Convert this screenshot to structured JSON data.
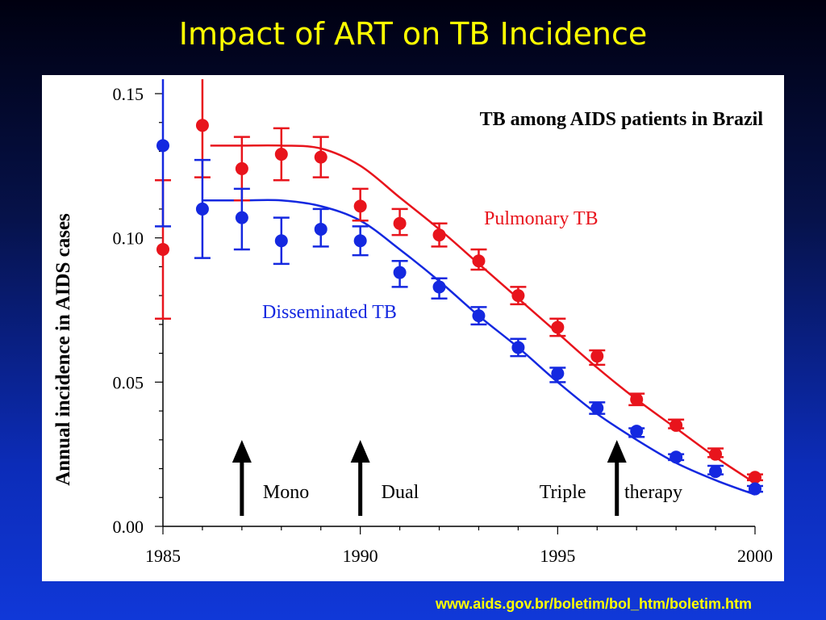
{
  "slide": {
    "title": "Impact of ART on TB Incidence",
    "source": "www.aids.gov.br/boletim/bol_htm/boletim.htm"
  },
  "colors": {
    "title": "#ffff00",
    "pulmonary": "#e8141c",
    "disseminated": "#1428e0",
    "arrows": "#000000"
  },
  "chart_data": {
    "type": "scatter",
    "title": "TB among AIDS patients in Brazil",
    "xlabel": "",
    "ylabel": "Annual incidence in AIDS cases",
    "xlim": [
      1985,
      2000
    ],
    "ylim": [
      0.0,
      0.15
    ],
    "x_ticks": [
      "1985",
      "1990",
      "1995",
      "2000"
    ],
    "y_ticks": [
      "0.00",
      "0.05",
      "0.10",
      "0.15"
    ],
    "series": [
      {
        "name": "Pulmonary TB",
        "color": "#e8141c",
        "points": [
          {
            "x": 1985,
            "y": 0.096,
            "lo": 0.072,
            "hi": 0.12
          },
          {
            "x": 1986,
            "y": 0.139,
            "lo": 0.121,
            "hi": 0.155
          },
          {
            "x": 1987,
            "y": 0.124,
            "lo": 0.113,
            "hi": 0.135
          },
          {
            "x": 1988,
            "y": 0.129,
            "lo": 0.12,
            "hi": 0.138
          },
          {
            "x": 1989,
            "y": 0.128,
            "lo": 0.121,
            "hi": 0.135
          },
          {
            "x": 1990,
            "y": 0.111,
            "lo": 0.106,
            "hi": 0.117
          },
          {
            "x": 1991,
            "y": 0.105,
            "lo": 0.101,
            "hi": 0.11
          },
          {
            "x": 1992,
            "y": 0.101,
            "lo": 0.097,
            "hi": 0.105
          },
          {
            "x": 1993,
            "y": 0.092,
            "lo": 0.089,
            "hi": 0.096
          },
          {
            "x": 1994,
            "y": 0.08,
            "lo": 0.077,
            "hi": 0.083
          },
          {
            "x": 1995,
            "y": 0.069,
            "lo": 0.066,
            "hi": 0.072
          },
          {
            "x": 1996,
            "y": 0.059,
            "lo": 0.056,
            "hi": 0.061
          },
          {
            "x": 1997,
            "y": 0.044,
            "lo": 0.042,
            "hi": 0.046
          },
          {
            "x": 1998,
            "y": 0.035,
            "lo": 0.034,
            "hi": 0.037
          },
          {
            "x": 1999,
            "y": 0.025,
            "lo": 0.024,
            "hi": 0.027
          },
          {
            "x": 2000,
            "y": 0.017,
            "lo": 0.016,
            "hi": 0.018
          }
        ],
        "fit": [
          [
            1986.2,
            0.132
          ],
          [
            1987,
            0.132
          ],
          [
            1988,
            0.132
          ],
          [
            1989,
            0.131
          ],
          [
            1990,
            0.125
          ],
          [
            1991,
            0.114
          ],
          [
            1992,
            0.103
          ],
          [
            1993,
            0.091
          ],
          [
            1994,
            0.079
          ],
          [
            1995,
            0.067
          ],
          [
            1996,
            0.055
          ],
          [
            1997,
            0.044
          ],
          [
            1998,
            0.034
          ],
          [
            1999,
            0.024
          ],
          [
            2000,
            0.015
          ]
        ]
      },
      {
        "name": "Disseminated TB",
        "color": "#1428e0",
        "points": [
          {
            "x": 1985,
            "y": 0.132,
            "lo": 0.104,
            "hi": 0.16
          },
          {
            "x": 1986,
            "y": 0.11,
            "lo": 0.093,
            "hi": 0.127
          },
          {
            "x": 1987,
            "y": 0.107,
            "lo": 0.096,
            "hi": 0.117
          },
          {
            "x": 1988,
            "y": 0.099,
            "lo": 0.091,
            "hi": 0.107
          },
          {
            "x": 1989,
            "y": 0.103,
            "lo": 0.097,
            "hi": 0.11
          },
          {
            "x": 1990,
            "y": 0.099,
            "lo": 0.094,
            "hi": 0.104
          },
          {
            "x": 1991,
            "y": 0.088,
            "lo": 0.083,
            "hi": 0.092
          },
          {
            "x": 1992,
            "y": 0.083,
            "lo": 0.079,
            "hi": 0.086
          },
          {
            "x": 1993,
            "y": 0.073,
            "lo": 0.07,
            "hi": 0.076
          },
          {
            "x": 1994,
            "y": 0.062,
            "lo": 0.059,
            "hi": 0.065
          },
          {
            "x": 1995,
            "y": 0.053,
            "lo": 0.05,
            "hi": 0.055
          },
          {
            "x": 1996,
            "y": 0.041,
            "lo": 0.039,
            "hi": 0.043
          },
          {
            "x": 1997,
            "y": 0.033,
            "lo": 0.031,
            "hi": 0.034
          },
          {
            "x": 1998,
            "y": 0.024,
            "lo": 0.023,
            "hi": 0.025
          },
          {
            "x": 1999,
            "y": 0.019,
            "lo": 0.018,
            "hi": 0.021
          },
          {
            "x": 2000,
            "y": 0.013,
            "lo": 0.012,
            "hi": 0.014
          }
        ],
        "fit": [
          [
            1986,
            0.113
          ],
          [
            1987,
            0.113
          ],
          [
            1988,
            0.113
          ],
          [
            1989,
            0.111
          ],
          [
            1990,
            0.106
          ],
          [
            1991,
            0.096
          ],
          [
            1992,
            0.085
          ],
          [
            1993,
            0.073
          ],
          [
            1994,
            0.062
          ],
          [
            1995,
            0.05
          ],
          [
            1996,
            0.039
          ],
          [
            1997,
            0.03
          ],
          [
            1998,
            0.022
          ],
          [
            1999,
            0.016
          ],
          [
            2000,
            0.011
          ]
        ]
      }
    ],
    "annotations": {
      "pulmonary_label": "Pulmonary TB",
      "disseminated_label": "Disseminated TB",
      "therapy_arrows": [
        {
          "x": 1987,
          "label": "Mono"
        },
        {
          "x": 1990,
          "label": "Dual"
        },
        {
          "x": 1996.5,
          "label": "Triple"
        }
      ],
      "therapy_suffix": "therapy"
    }
  }
}
